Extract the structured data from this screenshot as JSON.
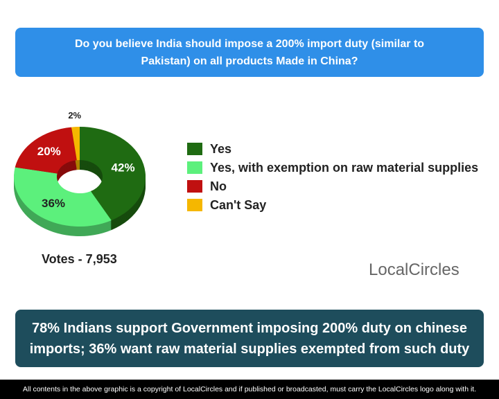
{
  "chart_data": {
    "type": "pie",
    "title": "Do you believe India should impose a 200% import duty (similar to Pakistan) on all products Made in China?",
    "categories": [
      "Yes",
      "Yes, with exemption on raw material supplies",
      "No",
      "Can't Say"
    ],
    "values": [
      42,
      36,
      20,
      2
    ],
    "value_labels": [
      "42%",
      "36%",
      "20%",
      "2%"
    ],
    "colors": [
      "#1f6b12",
      "#5cf07c",
      "#c01010",
      "#f5b700"
    ],
    "annotation": "Votes - 7,953"
  },
  "summary": "78% Indians support Government imposing 200% duty on chinese imports; 36% want raw material supplies exempted from such duty",
  "logo": "LocalCircles",
  "footer": "All contents in the above graphic is a copyright of LocalCircles and if published or broadcasted, must carry the LocalCircles logo along with it."
}
